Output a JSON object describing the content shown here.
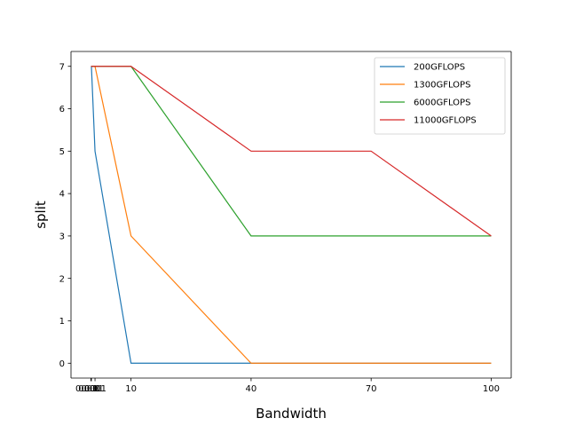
{
  "chart_data": {
    "type": "line",
    "xlabel": "Bandwidth",
    "ylabel": "split",
    "xlim": [
      -4.99995,
      104.99995
    ],
    "ylim": [
      -0.35,
      7.35
    ],
    "x": [
      0.0001,
      0.001,
      0.01,
      0.1,
      1,
      10,
      40,
      70,
      100
    ],
    "x_ticks": [
      {
        "value": 0.0001,
        "label": "0.0001"
      },
      {
        "value": 0.001,
        "label": "0.001"
      },
      {
        "value": 0.01,
        "label": "0.01"
      },
      {
        "value": 0.1,
        "label": "0.1"
      },
      {
        "value": 1,
        "label": "1"
      },
      {
        "value": 10,
        "label": "10"
      },
      {
        "value": 40,
        "label": "40"
      },
      {
        "value": 70,
        "label": "70"
      },
      {
        "value": 100,
        "label": "100"
      }
    ],
    "y_ticks": [
      0,
      1,
      2,
      3,
      4,
      5,
      6,
      7
    ],
    "legend_position": "upper right",
    "series": [
      {
        "name": "200GFLOPS",
        "color": "#1f77b4",
        "values": [
          7,
          7,
          7,
          7,
          5,
          0,
          0,
          0,
          0
        ]
      },
      {
        "name": "1300GFLOPS",
        "color": "#ff7f0e",
        "values": [
          7,
          7,
          7,
          7,
          7,
          3,
          0,
          0,
          0
        ]
      },
      {
        "name": "6000GFLOPS",
        "color": "#2ca02c",
        "values": [
          7,
          7,
          7,
          7,
          7,
          7,
          3,
          3,
          3
        ]
      },
      {
        "name": "11000GFLOPS",
        "color": "#d62728",
        "values": [
          7,
          7,
          7,
          7,
          7,
          7,
          5,
          5,
          3
        ]
      }
    ]
  }
}
